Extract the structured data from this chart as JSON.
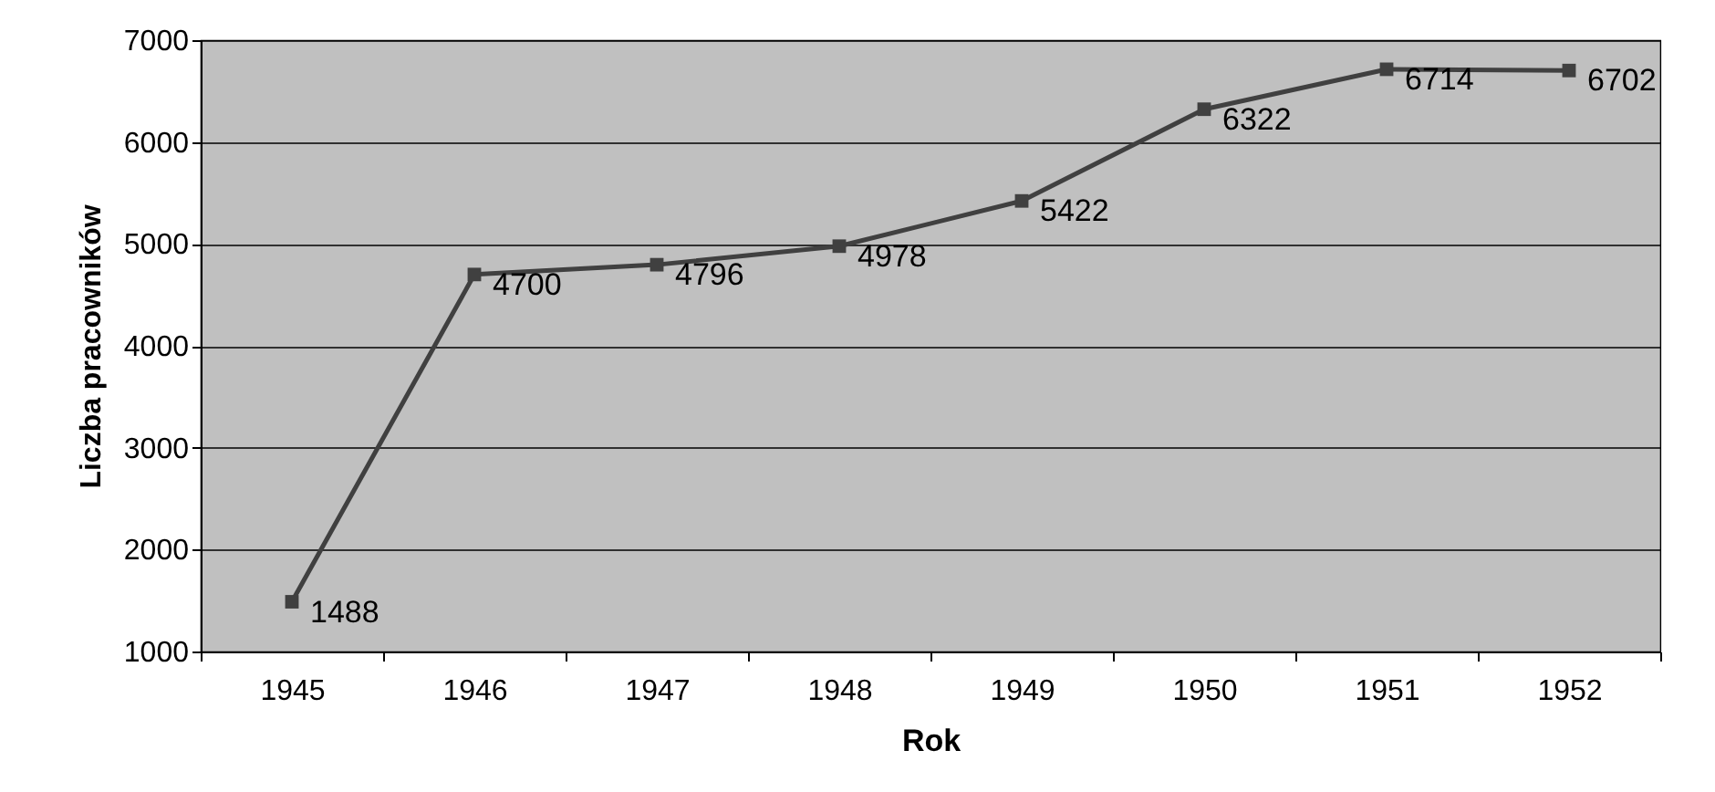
{
  "chart_data": {
    "type": "line",
    "xlabel": "Rok",
    "ylabel": "Liczba pracowników",
    "categories": [
      "1945",
      "1946",
      "1947",
      "1948",
      "1949",
      "1950",
      "1951",
      "1952"
    ],
    "series": [
      {
        "color": "#404040",
        "values": [
          1488,
          4700,
          4796,
          4978,
          5422,
          6322,
          6714,
          6702
        ]
      }
    ],
    "ylim": [
      1000,
      7000
    ],
    "yticks": [
      1000,
      2000,
      3000,
      4000,
      5000,
      6000,
      7000
    ],
    "grid": "y",
    "marker": "square",
    "line_style": "solid",
    "data_labels": true
  }
}
